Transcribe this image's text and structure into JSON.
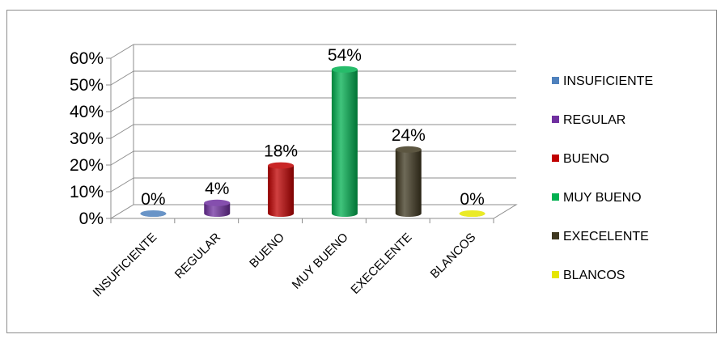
{
  "chart_data": {
    "type": "bar",
    "style": "3d-cylinder",
    "categories": [
      "INSUFICIENTE",
      "REGULAR",
      "BUENO",
      "MUY BUENO",
      "EXECELENTE",
      "BLANCOS"
    ],
    "values": [
      0,
      4,
      18,
      54,
      24,
      0
    ],
    "data_labels": [
      "0%",
      "4%",
      "18%",
      "54%",
      "24%",
      "0%"
    ],
    "colors": [
      "#4F81BD",
      "#7030A0",
      "#C00000",
      "#00B050",
      "#3F3820",
      "#E6E600"
    ],
    "y_ticks": [
      "0%",
      "10%",
      "20%",
      "30%",
      "40%",
      "50%",
      "60%"
    ],
    "ylim": [
      0,
      60
    ],
    "y_unit": "%",
    "grid": true,
    "legend": {
      "position": "right",
      "entries": [
        "INSUFICIENTE",
        "REGULAR",
        "BUENO",
        "MUY BUENO",
        "EXECELENTE",
        "BLANCOS"
      ]
    }
  }
}
